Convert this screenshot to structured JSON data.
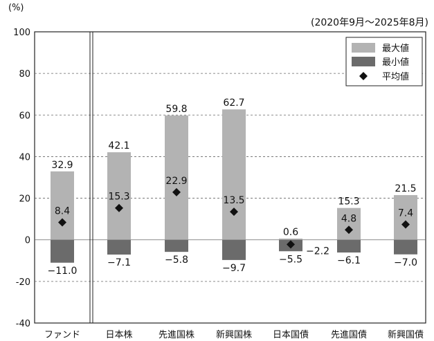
{
  "chart_data": {
    "type": "bar",
    "period_label": "(2020年9月〜2025年8月)",
    "y_unit_label": "(%)",
    "ylim": [
      -40,
      100
    ],
    "yticks": [
      -40,
      -20,
      0,
      20,
      40,
      60,
      80,
      100
    ],
    "grid": true,
    "legend_position": "top-right",
    "legend": {
      "max_label": "最大値",
      "min_label": "最小値",
      "avg_label": "平均値"
    },
    "colors": {
      "max": "#b3b3b3",
      "min": "#6b6b6b",
      "avg": "#111111"
    },
    "categories": [
      "ファンド",
      "日本株",
      "先進国株",
      "新興国株",
      "日本国債",
      "先進国債",
      "新興国債"
    ],
    "max_values": [
      32.9,
      42.1,
      59.8,
      62.7,
      0.6,
      15.3,
      21.5
    ],
    "min_values": [
      -11.0,
      -7.1,
      -5.8,
      -9.7,
      -5.5,
      -6.1,
      -7.0
    ],
    "avg_values": [
      8.4,
      15.3,
      22.9,
      13.5,
      -2.2,
      4.8,
      7.4
    ],
    "max_value_labels": [
      "32.9",
      "42.1",
      "59.8",
      "62.7",
      "0.6",
      "15.3",
      "21.5"
    ],
    "min_value_labels": [
      "−11.0",
      "−7.1",
      "−5.8",
      "−9.7",
      "−5.5",
      "−6.1",
      "−7.0"
    ],
    "avg_value_labels": [
      "8.4",
      "15.3",
      "22.9",
      "13.5",
      "−2.2",
      "4.8",
      "7.4"
    ]
  }
}
